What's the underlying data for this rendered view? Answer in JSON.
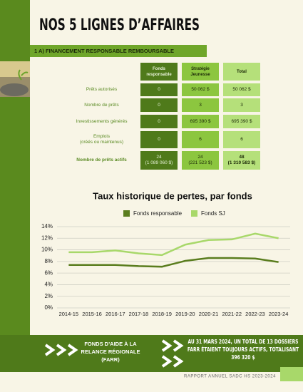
{
  "header": {
    "title": "NOS 5 LIGNES D’AFFAIRES",
    "section": "1 A) FINANCEMENT RESPONSABLE REMBOURSABLE"
  },
  "table": {
    "columns": [
      [
        "Fonds",
        "responsable"
      ],
      [
        "Stratégie",
        "Jeunesse"
      ],
      [
        "Total"
      ]
    ],
    "rows": [
      {
        "label": [
          "Prêts autorisés"
        ],
        "cells": [
          [
            "0"
          ],
          [
            "50 062 $"
          ],
          [
            "50 062 $"
          ]
        ]
      },
      {
        "label": [
          "Nombre de prêts"
        ],
        "cells": [
          [
            "0"
          ],
          [
            "3"
          ],
          [
            "3"
          ]
        ]
      },
      {
        "label": [
          "Investissements générés"
        ],
        "cells": [
          [
            "0"
          ],
          [
            "695 390 $"
          ],
          [
            "695 390 $"
          ]
        ]
      },
      {
        "label": [
          "Emplois",
          "(créés ou maintenus)"
        ],
        "cells": [
          [
            "0"
          ],
          [
            "6"
          ],
          [
            "6"
          ]
        ]
      },
      {
        "label": [
          "Nombre de prêts actifs"
        ],
        "cells": [
          [
            "24",
            "(1 089 060 $)"
          ],
          [
            "24",
            "(221 523 $)"
          ],
          [
            "48",
            "(1 310 583 $)"
          ]
        ]
      }
    ]
  },
  "chart_data": {
    "type": "line",
    "title": "Taux historique de pertes, par fonds",
    "categories": [
      "2014-15",
      "2015-16",
      "2016-17",
      "2017-18",
      "2018-19",
      "2019-20",
      "2020-21",
      "2021-22",
      "2022-23",
      "2023-24"
    ],
    "series": [
      {
        "name": "Fonds responsable",
        "color": "#5a7d1e",
        "values": [
          7.4,
          7.4,
          7.4,
          7.2,
          7.1,
          8.1,
          8.6,
          8.6,
          8.5,
          7.9
        ]
      },
      {
        "name": "Fonds SJ",
        "color": "#a8d86a",
        "values": [
          9.6,
          9.6,
          9.9,
          9.4,
          9.1,
          10.9,
          11.7,
          11.8,
          12.8,
          12.0
        ]
      }
    ],
    "ylim": [
      0,
      14
    ],
    "yticks": [
      {
        "value": 0,
        "label": "0%"
      },
      {
        "value": 2,
        "label": "2%"
      },
      {
        "value": 4,
        "label": "4%"
      },
      {
        "value": 6,
        "label": "6%"
      },
      {
        "value": 8,
        "label": "8%"
      },
      {
        "value": 10,
        "label": "10%"
      },
      {
        "value": 12,
        "label": "12%"
      },
      {
        "value": 14,
        "label": "14%"
      }
    ],
    "grid": true,
    "legend": "top"
  },
  "banner": {
    "left": [
      "FONDS D’AIDE À LA",
      "RELANCE RÉGIONALE",
      "(FARR)"
    ],
    "right": [
      "AU 31 MARS 2024, UN TOTAL DE 13 DOSSIERS",
      "FARR ÉTAIENT TOUJOURS ACTIFS, TOTALISANT",
      "396 320 $"
    ]
  },
  "footer": "RAPPORT ANNUEL SADC HS 2023-2024"
}
